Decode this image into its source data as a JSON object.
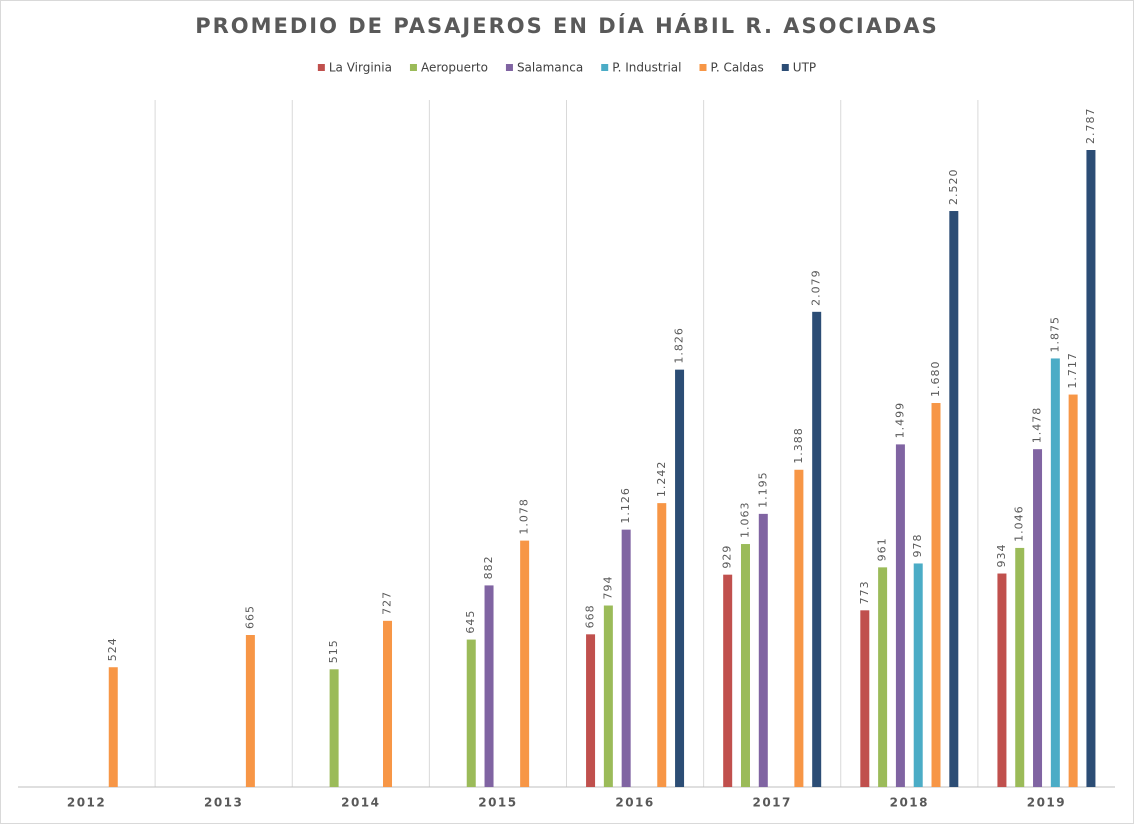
{
  "chart_data": {
    "type": "bar",
    "title": "PROMEDIO DE PASAJEROS EN DÍA HÁBIL R. ASOCIADAS",
    "categories": [
      "2012",
      "2013",
      "2014",
      "2015",
      "2016",
      "2017",
      "2018",
      "2019"
    ],
    "legend": "top",
    "series": [
      {
        "name": "La Virginia",
        "color": "#c0504d",
        "values": [
          null,
          null,
          null,
          null,
          668,
          929,
          773,
          934
        ],
        "value_labels": [
          null,
          null,
          null,
          null,
          "668",
          "929",
          "773",
          "934"
        ]
      },
      {
        "name": "Aeropuerto",
        "color": "#9bbb59",
        "values": [
          null,
          null,
          515,
          645,
          794,
          1063,
          961,
          1046
        ],
        "value_labels": [
          null,
          null,
          "515",
          "645",
          "794",
          "1.063",
          "961",
          "1.046"
        ]
      },
      {
        "name": "Salamanca",
        "color": "#8064a2",
        "values": [
          null,
          null,
          null,
          882,
          1126,
          1195,
          1499,
          1478
        ],
        "value_labels": [
          null,
          null,
          null,
          "882",
          "1.126",
          "1.195",
          "1.499",
          "1.478"
        ]
      },
      {
        "name": "P. Industrial",
        "color": "#4bacc6",
        "values": [
          null,
          null,
          null,
          null,
          null,
          null,
          978,
          1875
        ],
        "value_labels": [
          null,
          null,
          null,
          null,
          null,
          null,
          "978",
          "1.875"
        ]
      },
      {
        "name": "P. Caldas",
        "color": "#f79646",
        "values": [
          524,
          665,
          727,
          1078,
          1242,
          1388,
          1680,
          1717
        ],
        "value_labels": [
          "524",
          "665",
          "727",
          "1.078",
          "1.242",
          "1.388",
          "1.680",
          "1.717"
        ]
      },
      {
        "name": "UTP",
        "color": "#2c4d75",
        "values": [
          null,
          null,
          null,
          null,
          1826,
          2079,
          2520,
          2787
        ],
        "value_labels": [
          null,
          null,
          null,
          null,
          "1.826",
          "2.079",
          "2.520",
          "2.787"
        ]
      }
    ]
  }
}
